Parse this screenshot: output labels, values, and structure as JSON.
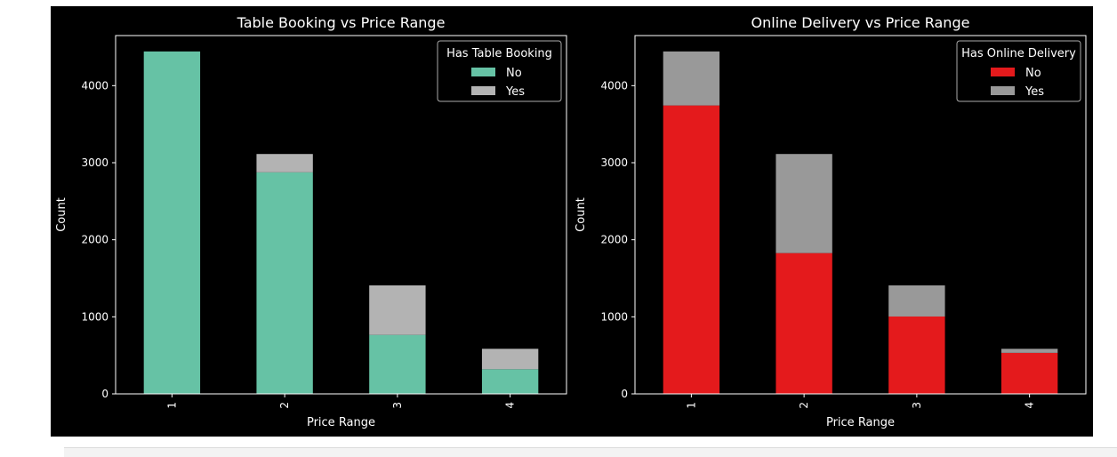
{
  "chart_data": [
    {
      "type": "bar",
      "stacked": true,
      "title": "Table Booking vs Price Range",
      "xlabel": "Price Range",
      "ylabel": "Count",
      "categories": [
        "1",
        "2",
        "3",
        "4"
      ],
      "ylim": [
        0,
        4650
      ],
      "yticks": [
        0,
        1000,
        2000,
        3000,
        4000
      ],
      "legend_title": "Has Table Booking",
      "legend_position": "top-right",
      "grid": false,
      "series": [
        {
          "name": "No",
          "color": "#66c2a5",
          "values": [
            4444,
            2875,
            765,
            320
          ]
        },
        {
          "name": "Yes",
          "color": "#b3b3b3",
          "values": [
            0,
            238,
            643,
            265
          ]
        }
      ]
    },
    {
      "type": "bar",
      "stacked": true,
      "title": "Online Delivery vs Price Range",
      "xlabel": "Price Range",
      "ylabel": "Count",
      "categories": [
        "1",
        "2",
        "3",
        "4"
      ],
      "ylim": [
        0,
        4650
      ],
      "yticks": [
        0,
        1000,
        2000,
        3000,
        4000
      ],
      "legend_title": "Has Online Delivery",
      "legend_position": "top-right",
      "grid": false,
      "series": [
        {
          "name": "No",
          "color": "#e41a1c",
          "values": [
            3743,
            1827,
            1004,
            532
          ]
        },
        {
          "name": "Yes",
          "color": "#999999",
          "values": [
            701,
            1286,
            404,
            53
          ]
        }
      ]
    }
  ]
}
